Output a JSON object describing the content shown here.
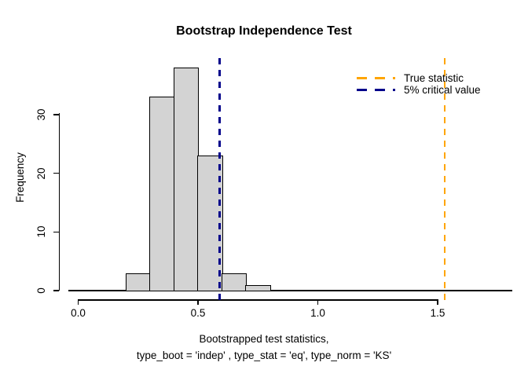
{
  "chart_data": {
    "type": "bar",
    "subtype": "histogram",
    "title": "Bootstrap Independence Test",
    "xlabel_line1": "Bootstrapped test statistics,",
    "xlabel_line2": "type_boot = 'indep' , type_stat = 'eq', type_norm = 'KS'",
    "ylabel": "Frequency",
    "bins": {
      "start": 0.2,
      "width": 0.1,
      "edges": [
        0.2,
        0.3,
        0.4,
        0.5,
        0.6,
        0.7,
        0.8
      ],
      "counts": [
        3,
        33,
        38,
        23,
        3,
        1
      ]
    },
    "x_ticks": [
      "0.0",
      "0.5",
      "1.0",
      "1.5"
    ],
    "x_tick_values": [
      0,
      0.5,
      1.0,
      1.5
    ],
    "y_ticks": [
      "0",
      "10",
      "20",
      "30"
    ],
    "y_tick_values": [
      0,
      10,
      20,
      30
    ],
    "xlim": [
      0,
      1.85
    ],
    "ylim": [
      0,
      39.6
    ],
    "grid": "off",
    "bar_fill": "#D3D3D3",
    "bar_border": "#000000",
    "vlines": [
      {
        "name": "true-statistic",
        "value": 1.53,
        "color": "#FFA500",
        "style": "dashed",
        "label": "True statistic"
      },
      {
        "name": "critical-value",
        "value": 0.59,
        "color": "#00008B",
        "style": "dashed",
        "label": "5% critical value"
      }
    ],
    "legend": {
      "position": "top-right",
      "border": "none",
      "entries": [
        {
          "label": "True statistic",
          "color": "#FFA500",
          "style": "dashed"
        },
        {
          "label": "5% critical value",
          "color": "#00008B",
          "style": "dashed"
        }
      ]
    }
  }
}
